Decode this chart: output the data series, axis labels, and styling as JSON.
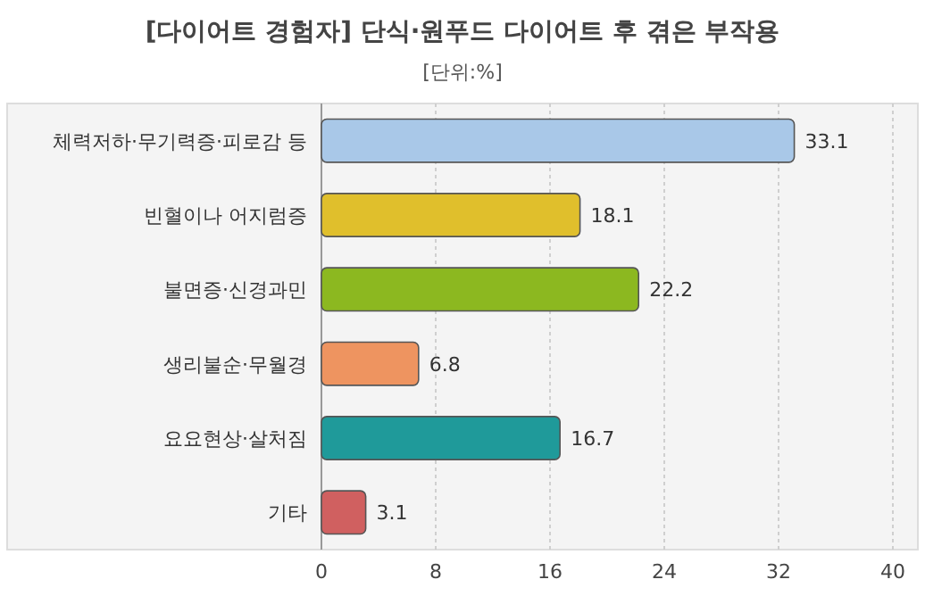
{
  "chart_data": {
    "type": "bar",
    "orientation": "horizontal",
    "title": "[다이어트 경험자] 단식·원푸드 다이어트 후 겪은 부작용",
    "subtitle": "[단위:%]",
    "categories": [
      "체력저하·무기력증·피로감 등",
      "빈혈이나 어지럼증",
      "불면증·신경과민",
      "생리불순·무월경",
      "요요현상·살처짐",
      "기타"
    ],
    "values": [
      33.1,
      18.1,
      22.2,
      6.8,
      16.7,
      3.1
    ],
    "colors": [
      "#a9c8e8",
      "#e0bf2c",
      "#8cb820",
      "#ee9460",
      "#1f9a9a",
      "#d06060"
    ],
    "xlim": [
      0,
      40
    ],
    "xticks": [
      0,
      8,
      16,
      24,
      32,
      40
    ],
    "grid": "x",
    "data_labels": true
  }
}
